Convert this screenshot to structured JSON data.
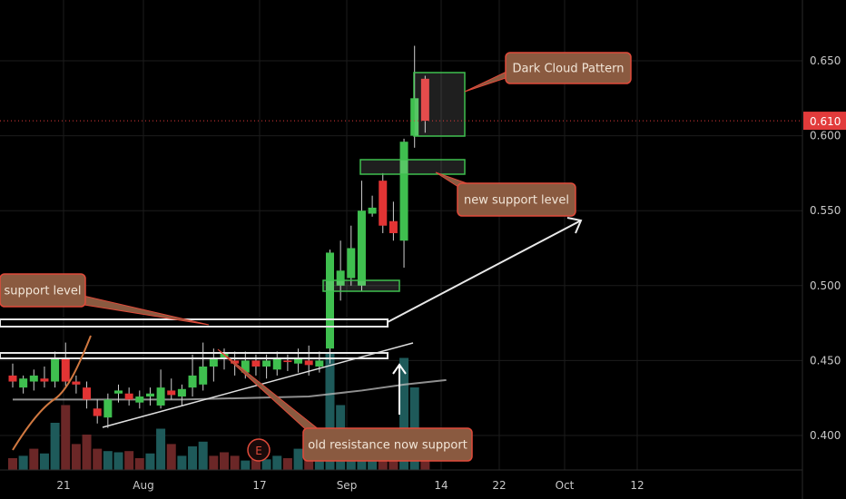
{
  "chart_data": {
    "type": "candlestick",
    "price_axis": {
      "ticks": [
        0.4,
        0.45,
        0.5,
        0.55,
        0.6,
        0.65
      ],
      "tick_labels": [
        "0.400",
        "0.450",
        "0.500",
        "0.550",
        "0.600",
        "0.650"
      ],
      "range": [
        0.38,
        0.675
      ]
    },
    "time_axis": {
      "labels": [
        "21",
        "Aug",
        "17",
        "Sep",
        "14",
        "22",
        "Oct",
        "12"
      ],
      "label_positions": [
        21,
        32,
        48,
        60,
        73,
        81,
        90,
        100
      ]
    },
    "last_price": {
      "value": 0.61,
      "label": "0.610",
      "color": "#e23b3b"
    },
    "colors": {
      "up": "#3fbf4f",
      "down": "#e23434",
      "vol_up": "#1e5a5a",
      "vol_down": "#6b2727",
      "ma": "#bfbfbf",
      "callout_fill": "#8a5a40",
      "callout_stroke": "#e04a3a",
      "box_stroke": "#3fbf4f"
    },
    "candles": [
      {
        "i": 0,
        "o": 0.44,
        "h": 0.448,
        "l": 0.432,
        "c": 0.436
      },
      {
        "i": 1,
        "o": 0.432,
        "h": 0.44,
        "l": 0.428,
        "c": 0.438
      },
      {
        "i": 2,
        "o": 0.436,
        "h": 0.444,
        "l": 0.43,
        "c": 0.44
      },
      {
        "i": 3,
        "o": 0.438,
        "h": 0.446,
        "l": 0.432,
        "c": 0.436
      },
      {
        "i": 4,
        "o": 0.436,
        "h": 0.456,
        "l": 0.432,
        "c": 0.452
      },
      {
        "i": 5,
        "o": 0.452,
        "h": 0.462,
        "l": 0.433,
        "c": 0.436
      },
      {
        "i": 6,
        "o": 0.436,
        "h": 0.44,
        "l": 0.428,
        "c": 0.434
      },
      {
        "i": 7,
        "o": 0.432,
        "h": 0.436,
        "l": 0.418,
        "c": 0.424
      },
      {
        "i": 8,
        "o": 0.418,
        "h": 0.424,
        "l": 0.408,
        "c": 0.413
      },
      {
        "i": 9,
        "o": 0.412,
        "h": 0.428,
        "l": 0.405,
        "c": 0.424
      },
      {
        "i": 10,
        "o": 0.428,
        "h": 0.434,
        "l": 0.422,
        "c": 0.43
      },
      {
        "i": 11,
        "o": 0.428,
        "h": 0.432,
        "l": 0.42,
        "c": 0.424
      },
      {
        "i": 12,
        "o": 0.422,
        "h": 0.43,
        "l": 0.418,
        "c": 0.426
      },
      {
        "i": 13,
        "o": 0.426,
        "h": 0.432,
        "l": 0.42,
        "c": 0.428
      },
      {
        "i": 14,
        "o": 0.42,
        "h": 0.444,
        "l": 0.418,
        "c": 0.432
      },
      {
        "i": 15,
        "o": 0.43,
        "h": 0.438,
        "l": 0.424,
        "c": 0.427
      },
      {
        "i": 16,
        "o": 0.426,
        "h": 0.434,
        "l": 0.42,
        "c": 0.431
      },
      {
        "i": 17,
        "o": 0.432,
        "h": 0.454,
        "l": 0.426,
        "c": 0.44
      },
      {
        "i": 18,
        "o": 0.434,
        "h": 0.462,
        "l": 0.43,
        "c": 0.446
      },
      {
        "i": 19,
        "o": 0.446,
        "h": 0.458,
        "l": 0.436,
        "c": 0.452
      },
      {
        "i": 20,
        "o": 0.452,
        "h": 0.458,
        "l": 0.444,
        "c": 0.455
      },
      {
        "i": 21,
        "o": 0.45,
        "h": 0.456,
        "l": 0.44,
        "c": 0.448
      },
      {
        "i": 22,
        "o": 0.442,
        "h": 0.456,
        "l": 0.438,
        "c": 0.45
      },
      {
        "i": 23,
        "o": 0.45,
        "h": 0.454,
        "l": 0.44,
        "c": 0.446
      },
      {
        "i": 24,
        "o": 0.446,
        "h": 0.454,
        "l": 0.438,
        "c": 0.45
      },
      {
        "i": 25,
        "o": 0.444,
        "h": 0.456,
        "l": 0.44,
        "c": 0.452
      },
      {
        "i": 26,
        "o": 0.45,
        "h": 0.454,
        "l": 0.443,
        "c": 0.449
      },
      {
        "i": 27,
        "o": 0.448,
        "h": 0.458,
        "l": 0.442,
        "c": 0.451
      },
      {
        "i": 28,
        "o": 0.45,
        "h": 0.46,
        "l": 0.44,
        "c": 0.447
      },
      {
        "i": 29,
        "o": 0.446,
        "h": 0.456,
        "l": 0.442,
        "c": 0.45
      },
      {
        "i": 30,
        "o": 0.458,
        "h": 0.524,
        "l": 0.448,
        "c": 0.522
      },
      {
        "i": 31,
        "o": 0.5,
        "h": 0.53,
        "l": 0.49,
        "c": 0.51
      },
      {
        "i": 32,
        "o": 0.505,
        "h": 0.54,
        "l": 0.5,
        "c": 0.525
      },
      {
        "i": 33,
        "o": 0.5,
        "h": 0.57,
        "l": 0.496,
        "c": 0.55
      },
      {
        "i": 34,
        "o": 0.548,
        "h": 0.56,
        "l": 0.546,
        "c": 0.552
      },
      {
        "i": 35,
        "o": 0.57,
        "h": 0.575,
        "l": 0.535,
        "c": 0.54
      },
      {
        "i": 36,
        "o": 0.543,
        "h": 0.556,
        "l": 0.53,
        "c": 0.535
      },
      {
        "i": 37,
        "o": 0.53,
        "h": 0.598,
        "l": 0.512,
        "c": 0.596
      },
      {
        "i": 38,
        "o": 0.6,
        "h": 0.66,
        "l": 0.592,
        "c": 0.625
      },
      {
        "i": 39,
        "o": 0.638,
        "h": 0.64,
        "l": 0.602,
        "c": 0.61
      }
    ],
    "volumes": [
      {
        "i": 0,
        "v": 0.1,
        "up": false
      },
      {
        "i": 1,
        "v": 0.12,
        "up": true
      },
      {
        "i": 2,
        "v": 0.18,
        "up": false
      },
      {
        "i": 3,
        "v": 0.14,
        "up": true
      },
      {
        "i": 4,
        "v": 0.4,
        "up": true
      },
      {
        "i": 5,
        "v": 0.55,
        "up": false
      },
      {
        "i": 6,
        "v": 0.22,
        "up": false
      },
      {
        "i": 7,
        "v": 0.3,
        "up": false
      },
      {
        "i": 8,
        "v": 0.18,
        "up": false
      },
      {
        "i": 9,
        "v": 0.16,
        "up": true
      },
      {
        "i": 10,
        "v": 0.15,
        "up": true
      },
      {
        "i": 11,
        "v": 0.16,
        "up": false
      },
      {
        "i": 12,
        "v": 0.1,
        "up": false
      },
      {
        "i": 13,
        "v": 0.14,
        "up": true
      },
      {
        "i": 14,
        "v": 0.35,
        "up": true
      },
      {
        "i": 15,
        "v": 0.22,
        "up": false
      },
      {
        "i": 16,
        "v": 0.12,
        "up": true
      },
      {
        "i": 17,
        "v": 0.2,
        "up": true
      },
      {
        "i": 18,
        "v": 0.24,
        "up": true
      },
      {
        "i": 19,
        "v": 0.12,
        "up": false
      },
      {
        "i": 20,
        "v": 0.15,
        "up": false
      },
      {
        "i": 21,
        "v": 0.12,
        "up": false
      },
      {
        "i": 22,
        "v": 0.08,
        "up": true
      },
      {
        "i": 23,
        "v": 0.1,
        "up": false
      },
      {
        "i": 24,
        "v": 0.09,
        "up": true
      },
      {
        "i": 25,
        "v": 0.12,
        "up": true
      },
      {
        "i": 26,
        "v": 0.1,
        "up": false
      },
      {
        "i": 27,
        "v": 0.18,
        "up": true
      },
      {
        "i": 28,
        "v": 0.15,
        "up": false
      },
      {
        "i": 29,
        "v": 0.2,
        "up": true
      },
      {
        "i": 30,
        "v": 1.0,
        "up": true
      },
      {
        "i": 31,
        "v": 0.55,
        "up": true
      },
      {
        "i": 32,
        "v": 0.25,
        "up": true
      },
      {
        "i": 33,
        "v": 0.3,
        "up": true
      },
      {
        "i": 34,
        "v": 0.2,
        "up": true
      },
      {
        "i": 35,
        "v": 0.18,
        "up": false
      },
      {
        "i": 36,
        "v": 0.15,
        "up": false
      },
      {
        "i": 37,
        "v": 0.95,
        "up": true
      },
      {
        "i": 38,
        "v": 0.7,
        "up": true
      },
      {
        "i": 39,
        "v": 0.2,
        "up": false
      }
    ],
    "moving_average": [
      {
        "i": 0,
        "p": 0.424
      },
      {
        "i": 8,
        "p": 0.424
      },
      {
        "i": 16,
        "p": 0.424
      },
      {
        "i": 22,
        "p": 0.425
      },
      {
        "i": 28,
        "p": 0.426
      },
      {
        "i": 33,
        "p": 0.43
      },
      {
        "i": 37,
        "p": 0.434
      },
      {
        "i": 41,
        "p": 0.437
      }
    ],
    "annotations": {
      "callouts": [
        {
          "name": "dark-cloud-callout",
          "text": "Dark Cloud Pattern"
        },
        {
          "name": "new-support-callout",
          "text": "new support level"
        },
        {
          "name": "support-level-callout",
          "text": "support level"
        },
        {
          "name": "old-resistance-callout",
          "text": "old resistance now support"
        }
      ],
      "earnings_marker": "E"
    }
  }
}
